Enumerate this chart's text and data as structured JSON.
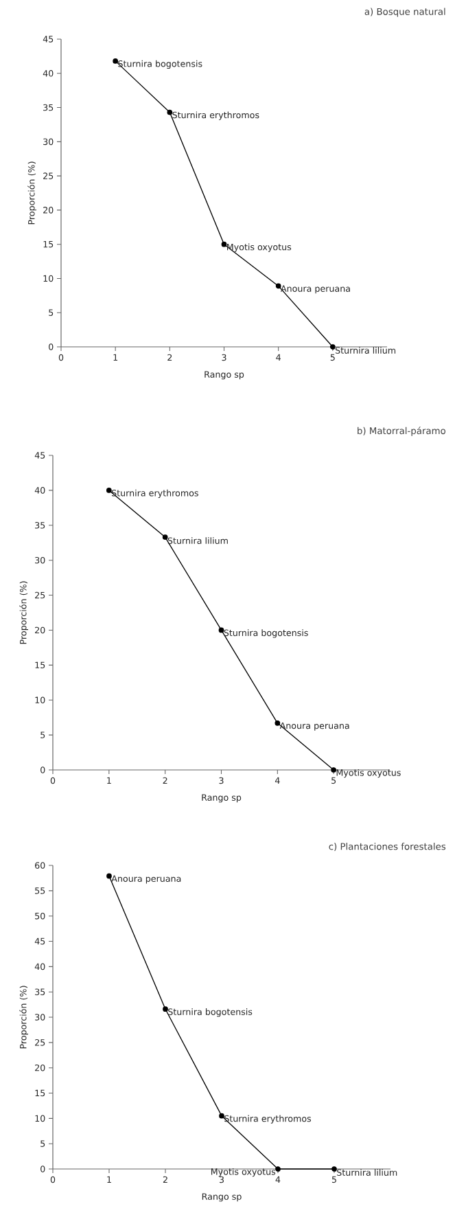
{
  "chart_data": [
    {
      "type": "line",
      "title": "a) Bosque natural",
      "xlabel": "Rango sp",
      "ylabel": "Proporción (%)",
      "x": [
        1,
        2,
        3,
        4,
        5
      ],
      "values": [
        41.8,
        34.3,
        15,
        8.9,
        0
      ],
      "color": "#000000",
      "marker": "circle",
      "xlim": [
        0,
        6
      ],
      "xticks": [
        0,
        1,
        2,
        3,
        4,
        5
      ],
      "ylim": [
        0,
        45
      ],
      "yticks": [
        0,
        5,
        10,
        15,
        20,
        25,
        30,
        35,
        40,
        45
      ],
      "annotations": [
        {
          "text": "Sturnira bogotensis",
          "x": 1,
          "y": 41.8
        },
        {
          "text": "Sturnira erythromos",
          "x": 2,
          "y": 34.3
        },
        {
          "text": "Myotis oxyotus",
          "x": 3,
          "y": 15
        },
        {
          "text": "Anoura peruana",
          "x": 4,
          "y": 8.9
        },
        {
          "text": "Sturnira lilium",
          "x": 5,
          "y": 0
        }
      ]
    },
    {
      "type": "line",
      "title": "b) Matorral-páramo",
      "xlabel": "Rango sp",
      "ylabel": "Proporción (%)",
      "x": [
        1,
        2,
        3,
        4,
        5
      ],
      "values": [
        40,
        33.3,
        20,
        6.7,
        0
      ],
      "color": "#000000",
      "marker": "circle",
      "xlim": [
        0,
        6
      ],
      "xticks": [
        0,
        1,
        2,
        3,
        4,
        5
      ],
      "ylim": [
        0,
        45
      ],
      "yticks": [
        0,
        5,
        10,
        15,
        20,
        25,
        30,
        35,
        40,
        45
      ],
      "annotations": [
        {
          "text": "Sturnira erythromos",
          "x": 1,
          "y": 40
        },
        {
          "text": "Sturnira lilium",
          "x": 2,
          "y": 33.3
        },
        {
          "text": "Sturnira bogotensis",
          "x": 3,
          "y": 20
        },
        {
          "text": "Anoura peruana",
          "x": 4,
          "y": 6.7
        },
        {
          "text": "Myotis oxyotus",
          "x": 5,
          "y": 0
        }
      ]
    },
    {
      "type": "line",
      "title": "c) Plantaciones forestales",
      "xlabel": "Rango sp",
      "ylabel": "Proporción (%)",
      "x": [
        1,
        2,
        3,
        4,
        5
      ],
      "values": [
        57.9,
        31.6,
        10.5,
        0,
        0
      ],
      "color": "#000000",
      "marker": "circle",
      "xlim": [
        0,
        6
      ],
      "xticks": [
        0,
        1,
        2,
        3,
        4,
        5
      ],
      "ylim": [
        0,
        60
      ],
      "yticks": [
        0,
        5,
        10,
        15,
        20,
        25,
        30,
        35,
        40,
        45,
        50,
        55,
        60
      ],
      "annotations": [
        {
          "text": "Anoura peruana",
          "x": 1,
          "y": 57.9
        },
        {
          "text": "Sturnira bogotensis",
          "x": 2,
          "y": 31.6
        },
        {
          "text": "Sturnira erythromos",
          "x": 3,
          "y": 10.5
        },
        {
          "text": "Myotis oxyotus",
          "x": 4,
          "y": 0
        },
        {
          "text": "Sturnira lilium",
          "x": 5,
          "y": 0
        }
      ]
    }
  ]
}
